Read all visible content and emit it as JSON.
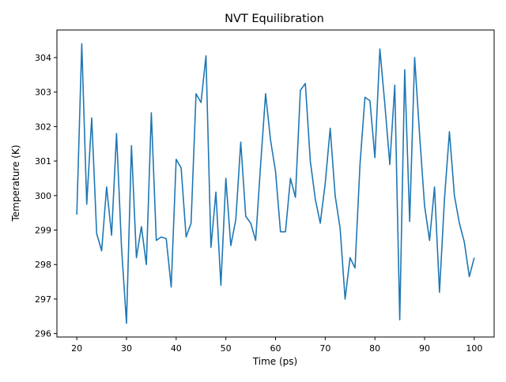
{
  "chart_data": {
    "type": "line",
    "title": "NVT Equilibration",
    "xlabel": "Time (ps)",
    "ylabel": "Temperature (K)",
    "xlim": [
      16,
      104
    ],
    "ylim": [
      295.9,
      304.8
    ],
    "xticks": [
      20,
      30,
      40,
      50,
      60,
      70,
      80,
      90,
      100
    ],
    "yticks": [
      296,
      297,
      298,
      299,
      300,
      301,
      302,
      303,
      304
    ],
    "grid": false,
    "line_color": "#1f77b4",
    "series": [
      {
        "x": [
          20,
          21,
          22,
          23,
          24,
          25,
          26,
          27,
          28,
          29,
          30,
          31,
          32,
          33,
          34,
          35,
          36,
          37,
          38,
          39,
          40,
          41,
          42,
          43,
          44,
          45,
          46,
          47,
          48,
          49,
          50,
          51,
          52,
          53,
          54,
          55,
          56,
          57,
          58,
          59,
          60,
          61,
          62,
          63,
          64,
          65,
          66,
          67,
          68,
          69,
          70,
          71,
          72,
          73,
          74,
          75,
          76,
          77,
          78,
          79,
          80,
          81,
          82,
          83,
          84,
          85,
          86,
          87,
          88,
          89,
          90,
          91,
          92,
          93,
          94,
          95,
          96,
          97,
          98,
          99,
          100
        ],
        "values": [
          299.45,
          304.4,
          299.75,
          302.25,
          298.9,
          298.4,
          300.25,
          298.85,
          301.8,
          298.5,
          296.3,
          301.45,
          298.2,
          299.1,
          298.0,
          302.4,
          298.7,
          298.8,
          298.75,
          297.35,
          301.05,
          300.8,
          298.8,
          299.2,
          302.95,
          302.7,
          304.05,
          298.5,
          300.1,
          297.4,
          300.5,
          298.55,
          299.3,
          301.55,
          299.4,
          299.2,
          298.7,
          300.9,
          302.95,
          301.6,
          300.7,
          298.95,
          298.95,
          300.5,
          299.95,
          303.05,
          303.25,
          301.0,
          299.9,
          299.2,
          300.35,
          301.95,
          300.0,
          299.05,
          297.0,
          298.2,
          297.9,
          300.9,
          302.85,
          302.75,
          301.1,
          304.25,
          302.65,
          300.9,
          303.2,
          296.4,
          303.65,
          299.25,
          304.0,
          301.75,
          299.7,
          298.7,
          300.25,
          297.2,
          299.9,
          301.85,
          300.0,
          299.2,
          298.65,
          297.65,
          298.2
        ]
      }
    ]
  }
}
